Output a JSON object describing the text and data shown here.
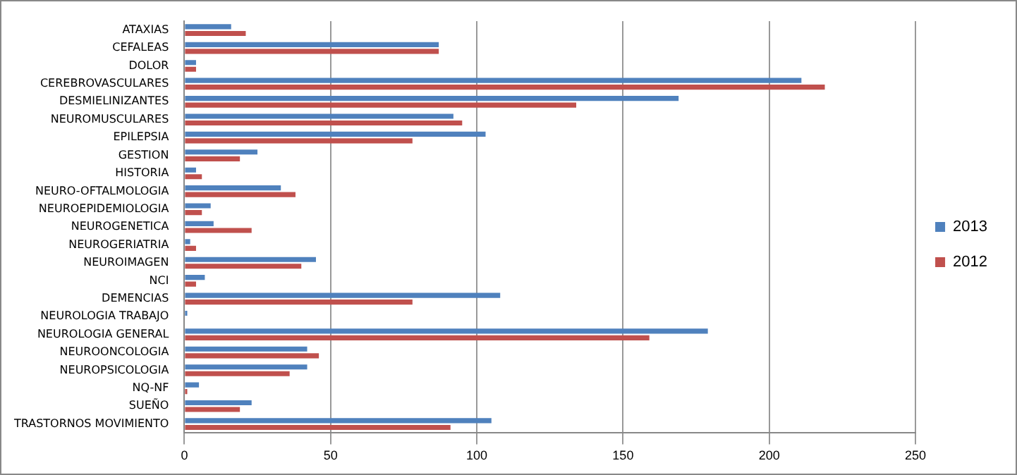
{
  "chart_data": {
    "type": "bar",
    "orientation": "horizontal",
    "categories": [
      "ATAXIAS",
      "CEFALEAS",
      "DOLOR",
      "CEREBROVASCULARES",
      "DESMIELINIZANTES",
      "NEUROMUSCULARES",
      "EPILEPSIA",
      "GESTION",
      "HISTORIA",
      "NEURO-OFTALMOLOGIA",
      "NEUROEPIDEMIOLOGIA",
      "NEUROGENETICA",
      "NEUROGERIATRIA",
      "NEUROIMAGEN",
      "NCI",
      "DEMENCIAS",
      "NEUROLOGIA TRABAJO",
      "NEUROLOGIA GENERAL",
      "NEUROONCOLOGIA",
      "NEUROPSICOLOGIA",
      "NQ-NF",
      "SUEÑO",
      "TRASTORNOS MOVIMIENTO"
    ],
    "series": [
      {
        "name": "2013",
        "color": "#4f81bd",
        "values": [
          16,
          87,
          4,
          211,
          169,
          92,
          103,
          25,
          4,
          33,
          9,
          10,
          2,
          45,
          7,
          108,
          1,
          179,
          42,
          42,
          5,
          23,
          105
        ]
      },
      {
        "name": "2012",
        "color": "#c0504d",
        "values": [
          21,
          87,
          4,
          219,
          134,
          95,
          78,
          19,
          6,
          38,
          6,
          23,
          4,
          40,
          4,
          78,
          0,
          159,
          46,
          36,
          1,
          19,
          91
        ]
      }
    ],
    "xlim": [
      0,
      250
    ],
    "xticks": [
      0,
      50,
      100,
      150,
      200,
      250
    ],
    "grid": "x",
    "legend": "right"
  }
}
